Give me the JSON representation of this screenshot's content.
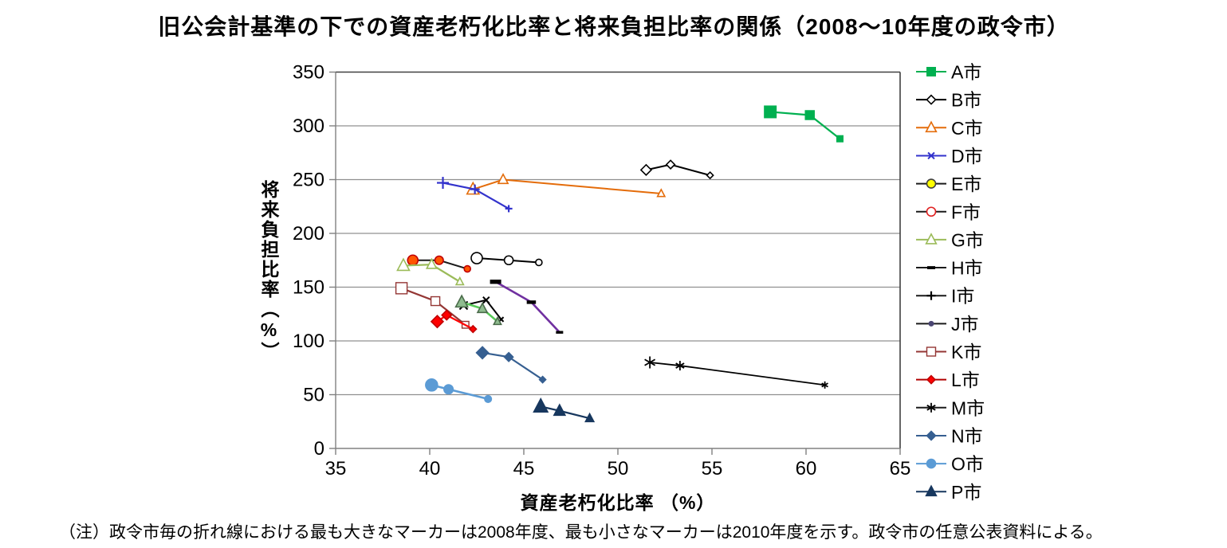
{
  "chart_data": {
    "type": "line",
    "title": "旧公会計基準の下での資産老朽化比率と将来負担比率の関係（2008～10年度の政令市）",
    "xlabel": "資産老朽化比率 （%）",
    "ylabel": "将来負担比率（%）",
    "note": "（注）政令市毎の折れ線における最も大きなマーカーは2008年度、最も小さなマーカーは2010年度を示す。政令市の任意公表資料による。",
    "xlim": [
      35,
      65
    ],
    "ylim": [
      0,
      350
    ],
    "xticks": [
      35,
      40,
      45,
      50,
      55,
      60,
      65
    ],
    "yticks": [
      0,
      50,
      100,
      150,
      200,
      250,
      300,
      350
    ],
    "grid": "horizontal",
    "legend_position": "right",
    "marker_size_meaning": "largest marker = FY2008, smallest marker = FY2010",
    "series": [
      {
        "name": "A市",
        "line": "#00B050",
        "lw": 2.2,
        "sizes": [
          16,
          12.5,
          9
        ],
        "marker": {
          "type": "square",
          "fill": "#00B050",
          "stroke": "none"
        },
        "legend": {
          "line": "#00B050",
          "size": 12,
          "marker": {
            "type": "square",
            "fill": "#00B050",
            "stroke": "none"
          }
        },
        "points": [
          [
            58.1,
            313
          ],
          [
            60.2,
            310
          ],
          [
            61.8,
            288
          ]
        ]
      },
      {
        "name": "B市",
        "line": "#000000",
        "lw": 2,
        "sizes": [
          13,
          10.5,
          8
        ],
        "marker": {
          "type": "diamond",
          "fill": "#ffffff",
          "stroke": "#000000"
        },
        "legend": {
          "line": "#000000",
          "size": 11,
          "marker": {
            "type": "diamond",
            "fill": "#ffffff",
            "stroke": "#000000"
          }
        },
        "points": [
          [
            51.5,
            259
          ],
          [
            52.8,
            264
          ],
          [
            54.9,
            254
          ]
        ]
      },
      {
        "name": "C市",
        "line": "#E46C0A",
        "lw": 2,
        "sizes": [
          13,
          10.5,
          8
        ],
        "marker": {
          "type": "triangle",
          "fill": "#ffffff",
          "stroke": "#E46C0A"
        },
        "legend": {
          "line": "#E46C0A",
          "size": 11,
          "marker": {
            "type": "triangle",
            "fill": "#ffffff",
            "stroke": "#E46C0A"
          }
        },
        "points": [
          [
            42.3,
            241
          ],
          [
            43.9,
            250
          ],
          [
            52.3,
            237
          ]
        ]
      },
      {
        "name": "D市",
        "line": "#3333CC",
        "lw": 2.2,
        "sizes": [
          15,
          12,
          9
        ],
        "marker": {
          "type": "plus",
          "fill": "#3333CC",
          "stroke": "#3333CC"
        },
        "legend": {
          "line": "#3333CC",
          "size": 11,
          "marker": {
            "type": "x",
            "fill": "#3333CC",
            "stroke": "#3333CC"
          }
        },
        "points": [
          [
            40.7,
            247
          ],
          [
            42.4,
            241
          ],
          [
            44.2,
            223
          ]
        ]
      },
      {
        "name": "E市",
        "line": "#1a1a1a",
        "lw": 2,
        "sizes": [
          13,
          10.5,
          8
        ],
        "marker": {
          "type": "circle",
          "fill": "#FF5500",
          "stroke": "#C00000"
        },
        "legend": {
          "line": "#1a1a1a",
          "size": 11,
          "marker": {
            "type": "circle",
            "fill": "#FFFF00",
            "stroke": "#404040"
          }
        },
        "points": [
          [
            39.1,
            175
          ],
          [
            40.5,
            175
          ],
          [
            42.0,
            167
          ]
        ]
      },
      {
        "name": "F市",
        "line": "#000000",
        "lw": 2,
        "sizes": [
          14,
          11,
          8
        ],
        "marker": {
          "type": "circle",
          "fill": "#ffffff",
          "stroke": "#000000"
        },
        "legend": {
          "line": "#1a1a1a",
          "size": 11,
          "marker": {
            "type": "circle",
            "fill": "#ffffff",
            "stroke": "#E02020"
          }
        },
        "points": [
          [
            42.5,
            177
          ],
          [
            44.2,
            175
          ],
          [
            45.8,
            173
          ]
        ]
      },
      {
        "name": "G市",
        "line": "#9BBB59",
        "lw": 2.2,
        "sizes": [
          13,
          10.5,
          8
        ],
        "marker": {
          "type": "triangle",
          "fill": "#ffffff",
          "stroke": "#9BBB59"
        },
        "legend": {
          "line": "#9BBB59",
          "size": 11,
          "marker": {
            "type": "triangle",
            "fill": "#ffffff",
            "stroke": "#9BBB59"
          }
        },
        "points": [
          [
            38.6,
            170
          ],
          [
            40.1,
            171
          ],
          [
            41.6,
            155
          ]
        ]
      },
      {
        "name": "H市",
        "line": "#7030A0",
        "lw": 2.6,
        "sizes": [
          14,
          11.5,
          9
        ],
        "marker": {
          "type": "bar",
          "fill": "#000000",
          "stroke": "none"
        },
        "legend": {
          "line": "#1a1a1a",
          "size": 10,
          "marker": {
            "type": "bar",
            "fill": "#000000",
            "stroke": "none"
          }
        },
        "points": [
          [
            43.5,
            155
          ],
          [
            45.4,
            136
          ],
          [
            46.9,
            108
          ]
        ]
      },
      {
        "name": "I市",
        "line": "#000000",
        "lw": 2,
        "sizes": [
          14,
          11,
          8
        ],
        "marker": {
          "type": "x",
          "fill": "#000000",
          "stroke": "#000000"
        },
        "legend": {
          "line": "#1a1a1a",
          "size": 11,
          "marker": {
            "type": "plus",
            "fill": "#000000",
            "stroke": "#000000"
          }
        },
        "points": [
          [
            41.8,
            133
          ],
          [
            43.0,
            138
          ],
          [
            43.8,
            120
          ]
        ]
      },
      {
        "name": "J市",
        "line": "#57C957",
        "lw": 2.6,
        "sizes": [
          13,
          10.5,
          8
        ],
        "marker": {
          "type": "triangle",
          "fill": "#8FBC8F",
          "stroke": "#4A6B4A"
        },
        "legend": {
          "line": "#1a1a1a",
          "size": 7,
          "marker": {
            "type": "dot",
            "fill": "#4A4572",
            "stroke": "none"
          }
        },
        "points": [
          [
            41.7,
            136
          ],
          [
            42.8,
            130
          ],
          [
            43.6,
            118
          ]
        ]
      },
      {
        "name": "K市",
        "line": "#943634",
        "lw": 2.2,
        "sizes": [
          14,
          11,
          8.5
        ],
        "marker": {
          "type": "square",
          "fill": "#ffffff",
          "stroke": "#943634"
        },
        "legend": {
          "line": "#943634",
          "size": 11,
          "marker": {
            "type": "square",
            "fill": "#ffffff",
            "stroke": "#943634"
          }
        },
        "points": [
          [
            38.5,
            149
          ],
          [
            40.3,
            137
          ],
          [
            41.9,
            115
          ]
        ]
      },
      {
        "name": "L市",
        "line": "#FF0000",
        "lw": 2.2,
        "sizes": [
          15,
          12,
          8.5
        ],
        "marker": {
          "type": "diamond",
          "fill": "#FF0000",
          "stroke": "#C00000"
        },
        "legend": {
          "line": "#B00000",
          "size": 10,
          "marker": {
            "type": "diamond",
            "fill": "#FF0000",
            "stroke": "#C00000"
          }
        },
        "points": [
          [
            40.4,
            118
          ],
          [
            40.9,
            124
          ],
          [
            42.3,
            111
          ]
        ]
      },
      {
        "name": "M市",
        "line": "#000000",
        "lw": 1.8,
        "sizes": [
          15,
          12,
          9
        ],
        "marker": {
          "type": "asterisk",
          "fill": "#000000",
          "stroke": "#000000"
        },
        "legend": {
          "line": "#1a1a1a",
          "size": 12,
          "marker": {
            "type": "asterisk",
            "fill": "#000000",
            "stroke": "#000000"
          }
        },
        "points": [
          [
            51.7,
            80
          ],
          [
            53.3,
            77
          ],
          [
            61.0,
            59
          ]
        ]
      },
      {
        "name": "N市",
        "line": "#365F91",
        "lw": 2.2,
        "sizes": [
          15,
          11,
          8
        ],
        "marker": {
          "type": "diamond",
          "fill": "#365F91",
          "stroke": "#365F91"
        },
        "legend": {
          "line": "#365F91",
          "size": 11,
          "marker": {
            "type": "diamond",
            "fill": "#365F91",
            "stroke": "#365F91"
          }
        },
        "points": [
          [
            42.8,
            89
          ],
          [
            44.2,
            85
          ],
          [
            46.0,
            64
          ]
        ]
      },
      {
        "name": "O市",
        "line": "#5B9BD5",
        "lw": 2.6,
        "sizes": [
          15,
          11.5,
          8.5
        ],
        "marker": {
          "type": "circle",
          "fill": "#5B9BD5",
          "stroke": "#5B9BD5"
        },
        "legend": {
          "line": "#5B9BD5",
          "size": 11,
          "marker": {
            "type": "circle",
            "fill": "#5B9BD5",
            "stroke": "#5B9BD5"
          }
        },
        "points": [
          [
            40.1,
            59
          ],
          [
            41.0,
            55
          ],
          [
            43.1,
            46
          ]
        ]
      },
      {
        "name": "P市",
        "line": "#17375E",
        "lw": 2.2,
        "sizes": [
          15,
          12,
          9
        ],
        "marker": {
          "type": "triangle",
          "fill": "#17375E",
          "stroke": "#17375E"
        },
        "legend": {
          "line": "#17375E",
          "size": 11,
          "marker": {
            "type": "triangle",
            "fill": "#17375E",
            "stroke": "#17375E"
          }
        },
        "points": [
          [
            45.9,
            39
          ],
          [
            46.9,
            35
          ],
          [
            48.5,
            28
          ]
        ]
      }
    ]
  }
}
